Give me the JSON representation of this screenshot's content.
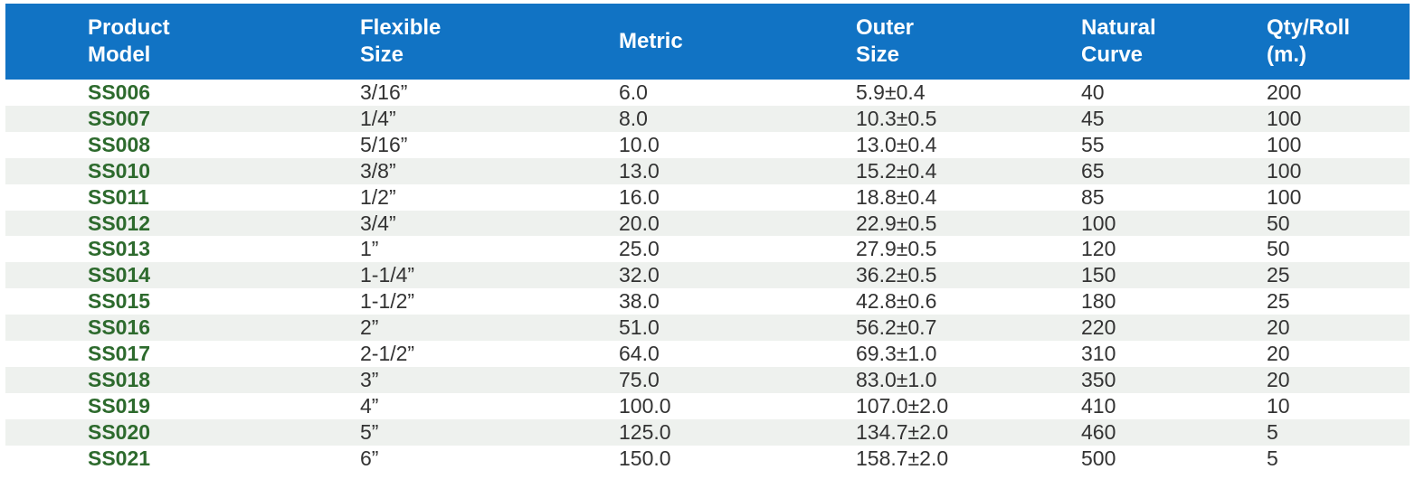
{
  "colors": {
    "header_bg": "#1173c4",
    "stripe": "#eef1ee",
    "model_green": "#2d6a2d",
    "text": "#333333"
  },
  "table": {
    "columns": [
      {
        "key": "product_model",
        "lines": [
          "Product",
          "Model"
        ]
      },
      {
        "key": "flexible_size",
        "lines": [
          "Flexible",
          "Size"
        ]
      },
      {
        "key": "metric",
        "lines": [
          "Metric"
        ]
      },
      {
        "key": "outer_size",
        "lines": [
          "Outer",
          "Size"
        ]
      },
      {
        "key": "natural_curve",
        "lines": [
          "Natural",
          "Curve"
        ]
      },
      {
        "key": "qty_per_roll",
        "lines": [
          "Qty/Roll",
          "(m.)"
        ]
      }
    ],
    "rows": [
      [
        "SS006",
        "3/16”",
        "6.0",
        "5.9±0.4",
        "40",
        "200"
      ],
      [
        "SS007",
        "1/4”",
        "8.0",
        "10.3±0.5",
        "45",
        "100"
      ],
      [
        "SS008",
        "5/16”",
        "10.0",
        "13.0±0.4",
        "55",
        "100"
      ],
      [
        "SS010",
        "3/8”",
        "13.0",
        "15.2±0.4",
        "65",
        "100"
      ],
      [
        "SS011",
        "1/2”",
        "16.0",
        "18.8±0.4",
        "85",
        "100"
      ],
      [
        "SS012",
        "3/4”",
        "20.0",
        "22.9±0.5",
        "100",
        "50"
      ],
      [
        "SS013",
        "1”",
        "25.0",
        "27.9±0.5",
        "120",
        "50"
      ],
      [
        "SS014",
        "1-1/4”",
        "32.0",
        "36.2±0.5",
        "150",
        "25"
      ],
      [
        "SS015",
        "1-1/2”",
        "38.0",
        "42.8±0.6",
        "180",
        "25"
      ],
      [
        "SS016",
        "2”",
        "51.0",
        "56.2±0.7",
        "220",
        "20"
      ],
      [
        "SS017",
        "2-1/2”",
        "64.0",
        "69.3±1.0",
        "310",
        "20"
      ],
      [
        "SS018",
        "3”",
        "75.0",
        "83.0±1.0",
        "350",
        "20"
      ],
      [
        "SS019",
        "4”",
        "100.0",
        "107.0±2.0",
        "410",
        "10"
      ],
      [
        "SS020",
        "5”",
        "125.0",
        "134.7±2.0",
        "460",
        "5"
      ],
      [
        "SS021",
        "6”",
        "150.0",
        "158.7±2.0",
        "500",
        "5"
      ]
    ]
  }
}
